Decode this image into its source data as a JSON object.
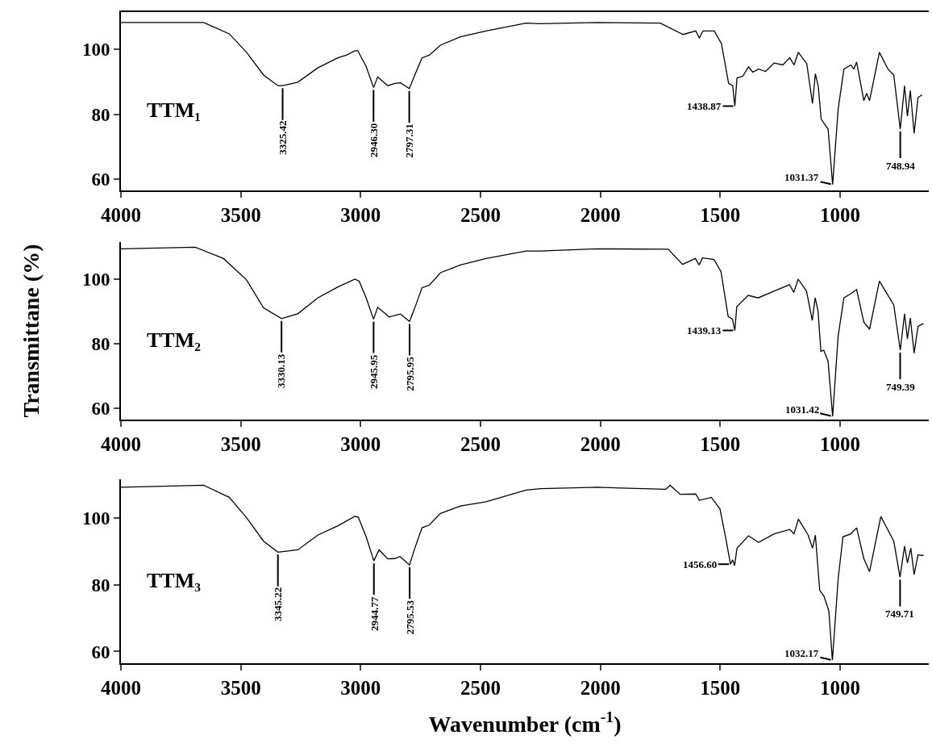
{
  "chart_data": [
    {
      "type": "line",
      "xlim": [
        4000,
        630
      ],
      "xticks": [
        4000,
        3500,
        3000,
        2500,
        2000,
        1500,
        1000
      ],
      "ylim": [
        56.5,
        111.5
      ],
      "yticks": [
        60,
        80,
        100
      ],
      "series": [
        {
          "name": "TTM₁",
          "color": "#000000",
          "x": [
            4000,
            3655,
            3548,
            3476,
            3405,
            3345,
            3325,
            3262,
            3179,
            3095,
            3060,
            3024,
            3012,
            2977,
            2946,
            2929,
            2887,
            2857,
            2834,
            2797,
            2774,
            2744,
            2714,
            2667,
            2584,
            2477,
            2310,
            2250,
            2012,
            1750,
            1655,
            1602,
            1587,
            1572,
            1525,
            1495,
            1465,
            1448,
            1439,
            1430,
            1406,
            1382,
            1364,
            1340,
            1311,
            1275,
            1239,
            1210,
            1192,
            1174,
            1139,
            1115,
            1103,
            1091,
            1079,
            1067,
            1050,
            1031,
            1008,
            984,
            955,
            943,
            931,
            901,
            889,
            877,
            836,
            800,
            776,
            749,
            731,
            719,
            707,
            691,
            675,
            658
          ],
          "values": [
            108.3,
            108.3,
            104.8,
            99.1,
            92.1,
            88.8,
            88.8,
            89.9,
            94.3,
            97.4,
            98.2,
            99.6,
            99.6,
            94.7,
            88.2,
            91.5,
            88.8,
            89.5,
            89.7,
            87.9,
            92.1,
            97.4,
            98.2,
            101.3,
            103.9,
            105.7,
            108.1,
            107.9,
            108.3,
            108.1,
            104.6,
            105.7,
            103.5,
            105.7,
            105.7,
            101.8,
            89.5,
            88.8,
            82.5,
            91.2,
            91.7,
            94.6,
            93.0,
            93.9,
            93.2,
            95.8,
            95.2,
            97.4,
            95.2,
            99.1,
            95.6,
            83.3,
            92.5,
            88.6,
            78.5,
            77.2,
            75.4,
            58.3,
            81.6,
            93.9,
            95.2,
            93.9,
            96.1,
            84.2,
            86.4,
            84.2,
            99.1,
            93.9,
            92.1,
            75.4,
            88.8,
            79.4,
            87.3,
            74.1,
            85.1,
            86.0
          ]
        }
      ],
      "annotations": [
        {
          "text": "3325.42",
          "x": 3325.42,
          "y": 88.8
        },
        {
          "text": "2946.30",
          "x": 2946.3,
          "y": 88.2
        },
        {
          "text": "2797.31",
          "x": 2797.31,
          "y": 87.9
        },
        {
          "text": "1438.87",
          "x": 1438.87,
          "y": 82.5
        },
        {
          "text": "1031.37",
          "x": 1031.37,
          "y": 58.3
        },
        {
          "text": "748.94",
          "x": 748.94,
          "y": 75.4
        }
      ]
    },
    {
      "type": "line",
      "ylabel": "Transmittane (%)",
      "xlim": [
        4000,
        630
      ],
      "xticks": [
        4000,
        3500,
        3000,
        2500,
        2000,
        1500,
        1000
      ],
      "ylim": [
        56.5,
        111.5
      ],
      "yticks": [
        60,
        80,
        100
      ],
      "series": [
        {
          "name": "TTM₂",
          "color": "#000000",
          "x": [
            4000,
            3690,
            3572,
            3476,
            3405,
            3330,
            3262,
            3179,
            3095,
            3024,
            3006,
            2977,
            2946,
            2929,
            2881,
            2834,
            2796,
            2774,
            2744,
            2714,
            2667,
            2584,
            2477,
            2310,
            2252,
            2014,
            1717,
            1657,
            1604,
            1588,
            1574,
            1526,
            1497,
            1467,
            1449,
            1439,
            1431,
            1383,
            1342,
            1276,
            1211,
            1193,
            1175,
            1140,
            1116,
            1104,
            1092,
            1080,
            1068,
            1050,
            1031,
            1008,
            984,
            955,
            931,
            901,
            877,
            836,
            776,
            749,
            731,
            719,
            707,
            691,
            675,
            652
          ],
          "values": [
            109.4,
            109.9,
            106.4,
            99.8,
            91.1,
            87.8,
            89.3,
            94.2,
            97.6,
            100,
            99.4,
            94.2,
            87.6,
            91.3,
            88.3,
            89.2,
            86.9,
            91.1,
            97.4,
            98.1,
            102,
            104.4,
            106.4,
            108.7,
            108.7,
            109.4,
            109.3,
            104.6,
            106.4,
            104.4,
            106.6,
            106.1,
            102.4,
            88.5,
            87.6,
            84.1,
            91.5,
            95,
            94.2,
            96.3,
            98.3,
            95.9,
            100,
            96.3,
            87.2,
            94.2,
            90.2,
            77.6,
            78,
            74.5,
            57.5,
            82.4,
            94.2,
            95.5,
            96.8,
            86.7,
            84.5,
            99.4,
            92,
            78,
            89.3,
            81.5,
            88,
            77.1,
            85.4,
            86.3
          ]
        }
      ],
      "annotations": [
        {
          "text": "3330.13",
          "x": 3330.13,
          "y": 87.8
        },
        {
          "text": "2945.95",
          "x": 2945.95,
          "y": 87.6
        },
        {
          "text": "2795.95",
          "x": 2795.95,
          "y": 86.9
        },
        {
          "text": "1439.13",
          "x": 1439.13,
          "y": 84.1
        },
        {
          "text": "1031.42",
          "x": 1031.42,
          "y": 57.5
        },
        {
          "text": "749.39",
          "x": 749.39,
          "y": 78
        }
      ]
    },
    {
      "type": "line",
      "xlabel": "Wavenumber (cm$^{-1}$)",
      "xlim": [
        4000,
        630
      ],
      "xticks": [
        4000,
        3500,
        3000,
        2500,
        2000,
        1500,
        1000
      ],
      "ylim": [
        56.5,
        111.5
      ],
      "yticks": [
        60,
        80,
        100
      ],
      "series": [
        {
          "name": "TTM₃",
          "color": "#000000",
          "x": [
            4000,
            3655,
            3548,
            3476,
            3405,
            3345,
            3262,
            3179,
            3095,
            3024,
            3010,
            2977,
            2945,
            2923,
            2887,
            2857,
            2836,
            2796,
            2774,
            2744,
            2714,
            2667,
            2584,
            2477,
            2310,
            2250,
            2012,
            1727,
            1709,
            1667,
            1602,
            1587,
            1537,
            1501,
            1477,
            1457,
            1448,
            1440,
            1430,
            1382,
            1340,
            1275,
            1210,
            1192,
            1174,
            1133,
            1115,
            1103,
            1085,
            1067,
            1047,
            1032,
            1008,
            988,
            955,
            931,
            901,
            877,
            830,
            776,
            750,
            731,
            719,
            705,
            691,
            675,
            652
          ],
          "values": [
            109.1,
            109.7,
            106.1,
            100,
            93,
            89.7,
            90.4,
            94.8,
            97.6,
            100.4,
            100.2,
            94.3,
            87.1,
            90.4,
            87.7,
            87.8,
            88.4,
            85.9,
            90.9,
            97,
            97.8,
            101.3,
            103.5,
            104.8,
            108.3,
            108.7,
            109.1,
            108.5,
            109.7,
            107,
            107.1,
            105.2,
            106.1,
            102.6,
            93.9,
            86.1,
            87.4,
            85.7,
            90.9,
            94.6,
            92.6,
            95.2,
            96.5,
            95.2,
            99.6,
            94.8,
            90.9,
            94.8,
            78.3,
            76.5,
            72.2,
            57.4,
            81.7,
            94.3,
            95.2,
            97,
            87.8,
            83.9,
            100.4,
            93,
            82.2,
            91.5,
            86.5,
            90.9,
            83,
            88.9,
            88.7
          ]
        }
      ],
      "annotations": [
        {
          "text": "3345.22",
          "x": 3345.22,
          "y": 89.7
        },
        {
          "text": "2944.77",
          "x": 2944.77,
          "y": 87.1
        },
        {
          "text": "2795.53",
          "x": 2795.53,
          "y": 85.9
        },
        {
          "text": "1456.60",
          "x": 1456.6,
          "y": 86.1
        },
        {
          "text": "1032.17",
          "x": 1032.17,
          "y": 57.4
        },
        {
          "text": "749.71",
          "x": 749.71,
          "y": 82.2
        }
      ]
    }
  ]
}
